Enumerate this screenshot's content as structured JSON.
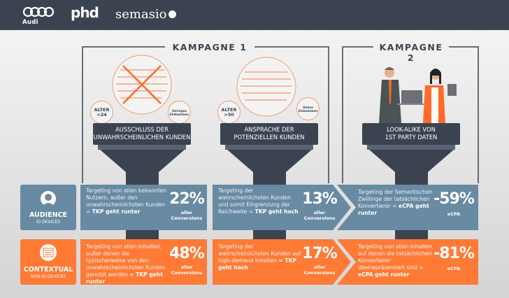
{
  "header": {
    "logos": [
      "Audi",
      "phd",
      "semasio"
    ]
  },
  "campaigns": [
    {
      "title": "KAMPAGNE 1"
    },
    {
      "title": "KAMPAGNE 2"
    }
  ],
  "funnels": [
    {
      "label_line1": "AUSSCHLUSS DER",
      "label_line2": "UNWAHRSCHEINLICHEN KUNDEN",
      "left_circle": [
        "ALTER",
        "<24"
      ],
      "right_circle": [
        "Geringes",
        "Einkommen"
      ]
    },
    {
      "label_line1": "ANSPRACHE DER",
      "label_line2": "POTENZIELLEN KUNDEN",
      "left_circle": [
        "ALTER",
        ">50"
      ],
      "right_circle": [
        "Hohes",
        "Einkommen"
      ]
    },
    {
      "label_line1": "LOOK-ALIKE VON",
      "label_line2": "1ST PARTY DATEN"
    }
  ],
  "rows": [
    {
      "title": "AUDIENCE",
      "subtitle": "ID DEVICES",
      "icon": "user-icon",
      "color": "#688aa3",
      "cells": [
        {
          "text": "Targeting von allen bekannten Nutzern, außer den unwahrscheinlichsten Kunden = ",
          "bold": "TKP geht runter",
          "value": "22%",
          "label1": "aller",
          "label2": "Conversions"
        },
        {
          "text": "Targeting der wahrscheinlichsten Kunden und somit Eingrenzung der Reichweite  = ",
          "bold": "TKP geht hoch",
          "value": "13%",
          "label1": "aller",
          "label2": "Conversions"
        },
        {
          "text": "Targeting der Semantischen Zwillinge der tatsächlichen Konvertierer  = ",
          "bold": "eCPA geht runter",
          "value": "-59%",
          "label1": "eCPA",
          "label2": ""
        }
      ]
    },
    {
      "title": "CONTEXTUAL",
      "subtitle": "NON-ID DEVICES",
      "icon": "webpage-icon",
      "color": "#ff7a35",
      "cells": [
        {
          "text": "Targeting von allen Inhalten, außer denen die typischerweise von den unwahrscheinlichsten Kunden genutzt werden ",
          "bold": "= TKP geht runter",
          "value": "48%",
          "label1": "aller",
          "label2": "Conversions"
        },
        {
          "text": "Targeting der wahrscheinlichsten Kunden auf high-demand Inhalten ",
          "bold": "= TKP geht hoch",
          "value": "17%",
          "label1": "aller",
          "label2": "Conversions"
        },
        {
          "text": "Targeting von allen Inhalten, auf denen die tatsächlichen Konvertierer überrepräsentiert sind = ",
          "bold": "eCPA geht runter",
          "value": "-81%",
          "label1": "eCPA",
          "label2": ""
        }
      ]
    }
  ],
  "colors": {
    "dark": "#3c4350",
    "blue": "#688aa3",
    "orange": "#ff7a35"
  }
}
